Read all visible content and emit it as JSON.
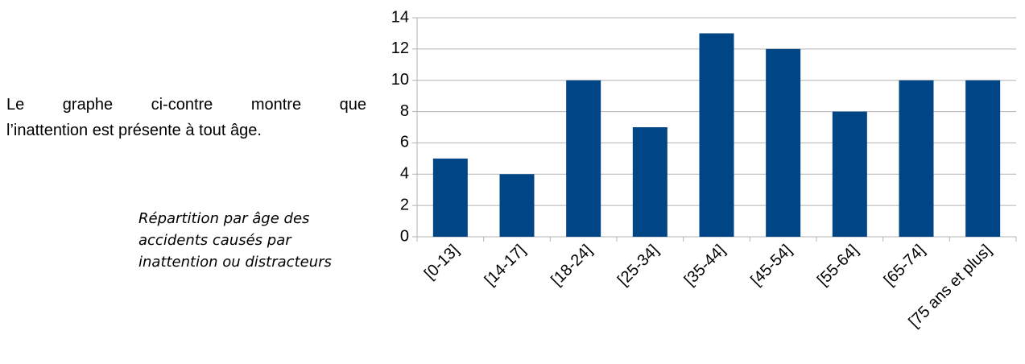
{
  "paragraph": [
    "Le graphe ci-contre montre que",
    "l’inattention est présente à tout âge."
  ],
  "caption": [
    "Répartition par âge des",
    "accidents causés par",
    "inattention ou distracteurs"
  ],
  "chart_data": {
    "type": "bar",
    "categories": [
      "[0-13]",
      "[14-17]",
      "[18-24]",
      "[25-34]",
      "[35-44]",
      "[45-54]",
      "[55-64]",
      "[65-74]",
      "[75 ans et plus]"
    ],
    "values": [
      5,
      4,
      10,
      7,
      13,
      12,
      8,
      10,
      10
    ],
    "color": "#004586",
    "ylim": [
      0,
      14
    ],
    "yticks": [
      0,
      2,
      4,
      6,
      8,
      10,
      12,
      14
    ],
    "grid": true
  }
}
